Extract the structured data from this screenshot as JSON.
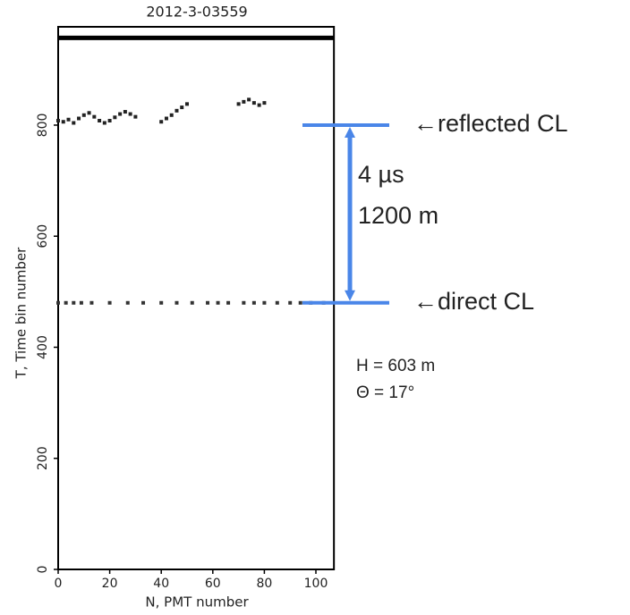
{
  "chart_data": {
    "type": "scatter",
    "title": "2012-3-03559",
    "xlabel": "N, PMT number",
    "ylabel": "T, Time bin number",
    "xlim": [
      0,
      107
    ],
    "ylim": [
      0,
      977
    ],
    "xticks": [
      0,
      20,
      40,
      60,
      80,
      100
    ],
    "yticks": [
      0,
      200,
      400,
      600,
      800
    ],
    "series": [
      {
        "color": "#222222",
        "mode": "points",
        "x": [
          0,
          2,
          4,
          6,
          8,
          10,
          12,
          14,
          16,
          18,
          20,
          22,
          24,
          26,
          28,
          30,
          40,
          42,
          44,
          46,
          48,
          50,
          70,
          72,
          74,
          76,
          78,
          80
        ],
        "values": [
          808,
          806,
          810,
          804,
          812,
          818,
          822,
          815,
          808,
          804,
          808,
          814,
          820,
          824,
          820,
          815,
          806,
          812,
          818,
          826,
          832,
          838,
          838,
          842,
          846,
          840,
          836,
          840
        ]
      },
      {
        "color": "#333333",
        "mode": "points",
        "x": [
          0,
          3,
          6,
          9,
          13,
          20,
          27,
          33,
          40,
          46,
          52,
          58,
          62,
          66,
          72,
          76,
          80,
          85,
          90,
          94,
          98,
          103
        ],
        "values": [
          480,
          480,
          480,
          480,
          480,
          480,
          480,
          480,
          480,
          480,
          480,
          480,
          480,
          480,
          480,
          480,
          480,
          480,
          480,
          480,
          480,
          480
        ]
      },
      {
        "color": "#000000",
        "mode": "line",
        "x": [
          0,
          107
        ],
        "values": [
          957,
          957
        ]
      }
    ],
    "markers": [
      {
        "label": "←reflected CL",
        "y": 800
      },
      {
        "label": "←direct CL",
        "y": 480
      }
    ],
    "marker_color": "#4a86e8",
    "label_color": "#b0124e",
    "annotations": [
      "4 µs",
      "1200 m"
    ],
    "notes": [
      "H = 603 m",
      "Θ = 17°"
    ]
  }
}
